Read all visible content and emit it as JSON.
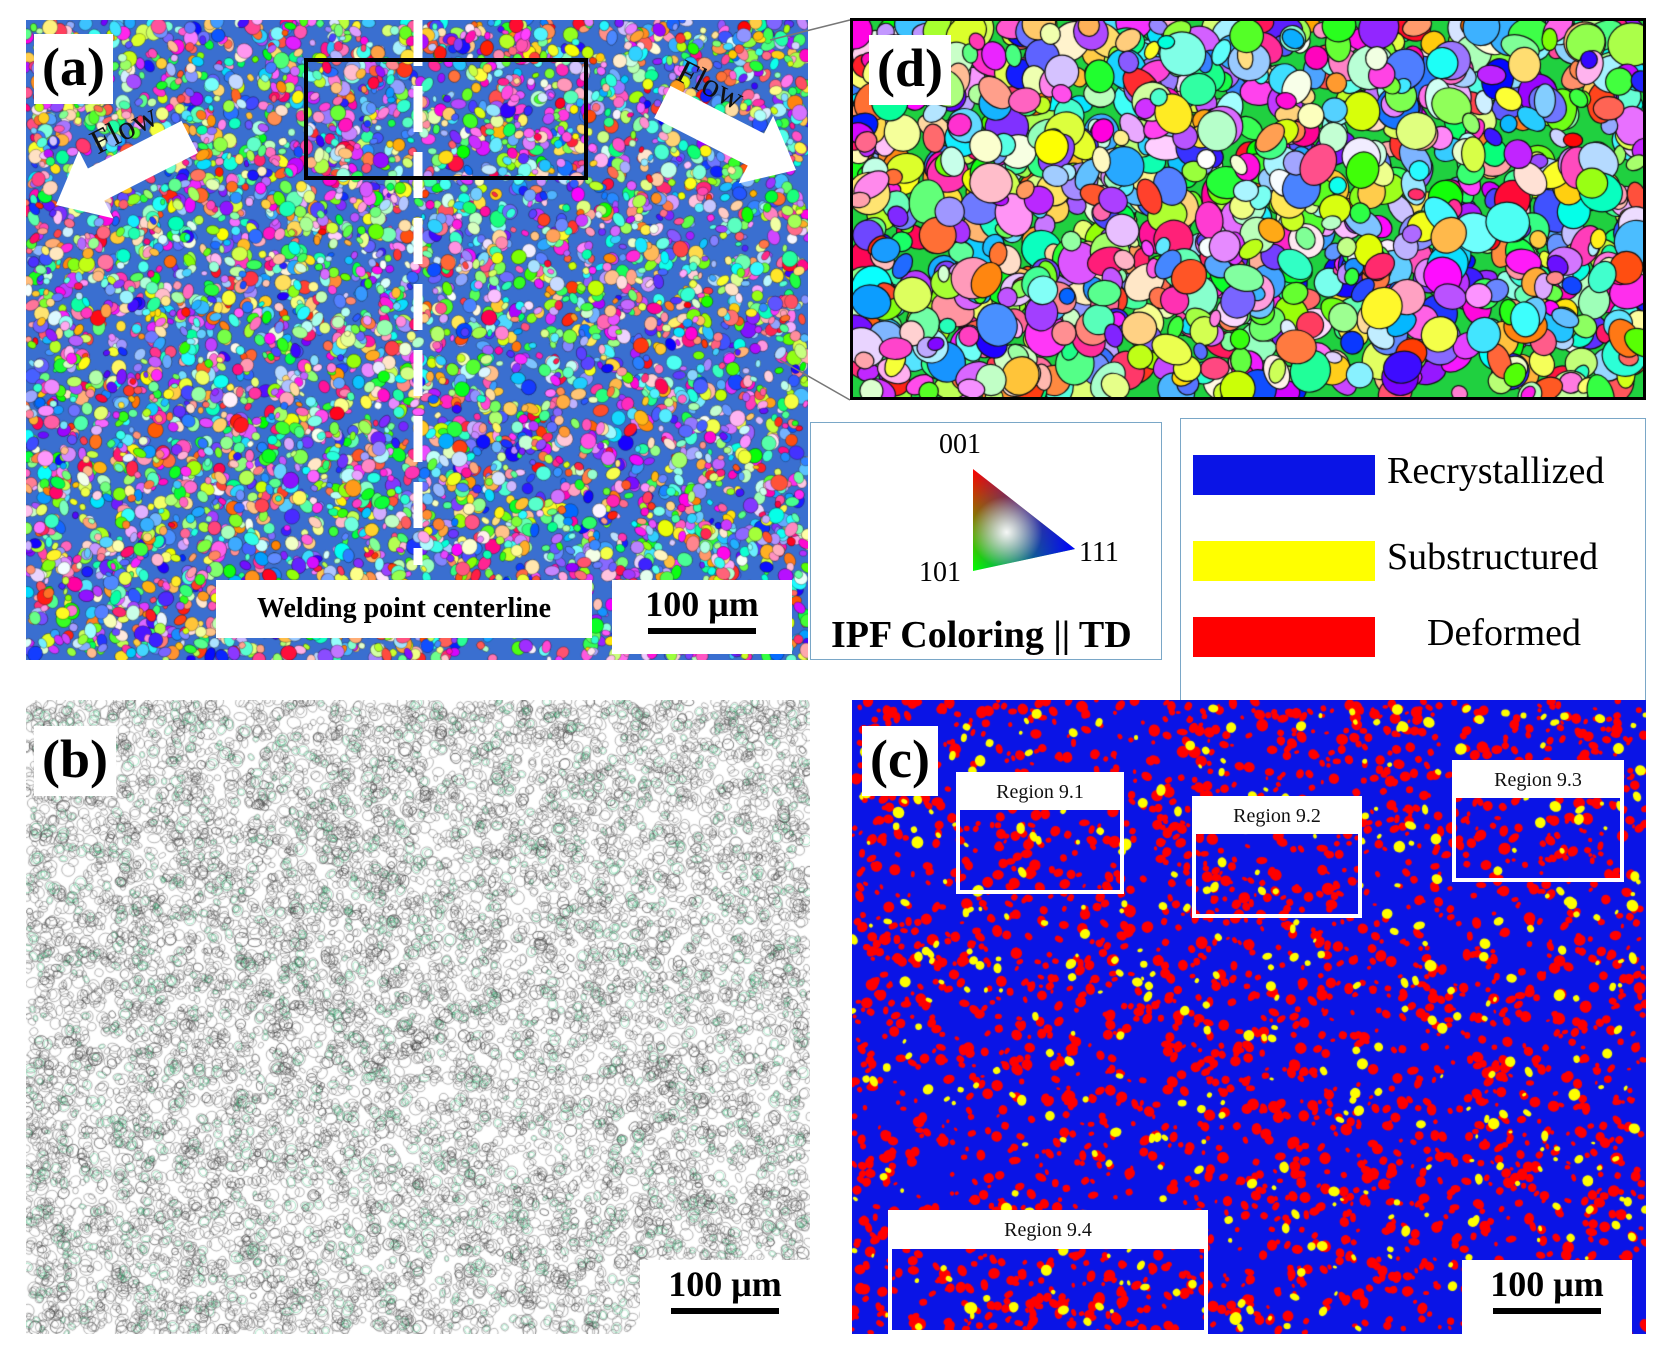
{
  "colors": {
    "recrystallized": "#0a14e6",
    "substructured": "#ffff00",
    "deformed": "#ff0000"
  },
  "panel_a": {
    "label": "(a)",
    "flow_left": "Flow",
    "flow_right": "Flow",
    "centerline_caption": "Welding point centerline",
    "scale": "100 μm"
  },
  "panel_b": {
    "label": "(b)",
    "scale": "100 μm"
  },
  "panel_c": {
    "label": "(c)",
    "scale": "100 μm",
    "regions": [
      "Region 9.1",
      "Region 9.2",
      "Region 9.3",
      "Region 9.4"
    ]
  },
  "panel_d": {
    "label": "(d)"
  },
  "ipf_legend": {
    "pole_001": "001",
    "pole_101": "101",
    "pole_111": "111",
    "title": "IPF Coloring || TD"
  },
  "state_legend": {
    "recrystallized": "Recrystallized",
    "substructured": "Substructured",
    "deformed": "Deformed"
  }
}
